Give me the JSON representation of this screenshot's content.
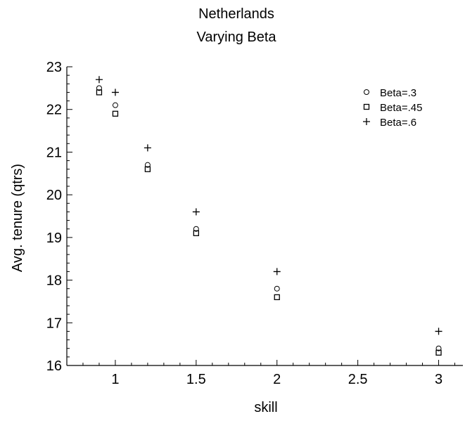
{
  "chart_data": {
    "type": "scatter",
    "title": [
      "Netherlands",
      "Varying Beta"
    ],
    "xlabel": "skill",
    "ylabel": "Avg. tenure (qtrs)",
    "xlim": [
      0.7,
      3.15
    ],
    "ylim": [
      16,
      23
    ],
    "xticks": [
      1,
      1.5,
      2,
      2.5,
      3
    ],
    "xtick_labels": [
      "1",
      "1.5",
      "2",
      "2.5",
      "3"
    ],
    "yticks": [
      16,
      17,
      18,
      19,
      20,
      21,
      22,
      23
    ],
    "ytick_labels": [
      "16",
      "17",
      "18",
      "19",
      "20",
      "21",
      "22",
      "23"
    ],
    "grid": false,
    "legend_position": "top-right",
    "series": [
      {
        "name": "Beta=.3",
        "marker": "circle",
        "x": [
          0.9,
          1,
          1.2,
          1.5,
          2,
          3
        ],
        "y": [
          22.5,
          22.1,
          20.7,
          19.2,
          17.8,
          16.4
        ]
      },
      {
        "name": "Beta=.45",
        "marker": "square",
        "x": [
          0.9,
          1,
          1.2,
          1.5,
          2,
          3
        ],
        "y": [
          22.4,
          21.9,
          20.6,
          19.1,
          17.6,
          16.3
        ]
      },
      {
        "name": "Beta=.6",
        "marker": "plus",
        "x": [
          0.9,
          1,
          1.2,
          1.5,
          2,
          3
        ],
        "y": [
          22.7,
          22.4,
          21.1,
          19.6,
          18.2,
          16.8
        ]
      }
    ]
  }
}
